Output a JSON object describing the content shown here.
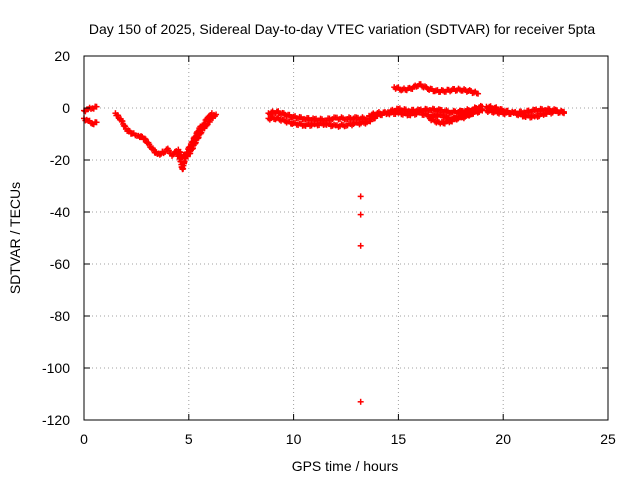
{
  "chart_data": {
    "type": "scatter",
    "title": "Day 150 of 2025, Sidereal Day-to-day VTEC variation (SDTVAR) for receiver 5pta",
    "xlabel": "GPS time / hours",
    "ylabel": "SDTVAR / TECUs",
    "xlim": [
      0,
      25
    ],
    "ylim": [
      -120,
      20
    ],
    "xticks": [
      0,
      5,
      10,
      15,
      20,
      25
    ],
    "yticks": [
      20,
      0,
      -20,
      -40,
      -60,
      -80,
      -100,
      -120
    ],
    "grid": true,
    "marker": "plus",
    "series": [
      {
        "name": "SDTVAR",
        "color": "#ff0000",
        "segments": [
          [
            [
              0.0,
              -4
            ],
            [
              0.2,
              -5
            ],
            [
              0.4,
              -6
            ],
            [
              0.6,
              -5.5
            ]
          ],
          [
            [
              0.0,
              -1
            ],
            [
              0.2,
              -0.5
            ],
            [
              0.4,
              0
            ],
            [
              0.6,
              0.5
            ]
          ],
          [
            [
              1.5,
              -2
            ],
            [
              1.8,
              -5
            ],
            [
              2.0,
              -8
            ],
            [
              2.3,
              -10
            ],
            [
              2.6,
              -10.5
            ],
            [
              2.9,
              -12
            ],
            [
              3.2,
              -15
            ],
            [
              3.5,
              -18
            ],
            [
              3.8,
              -17
            ],
            [
              4.0,
              -16
            ],
            [
              4.2,
              -18
            ],
            [
              4.4,
              -17
            ],
            [
              4.6,
              -20
            ],
            [
              4.7,
              -24
            ],
            [
              4.8,
              -20
            ],
            [
              5.0,
              -18
            ],
            [
              5.2,
              -15
            ],
            [
              5.4,
              -12
            ],
            [
              5.6,
              -9
            ],
            [
              5.8,
              -7
            ],
            [
              6.0,
              -5
            ],
            [
              6.2,
              -3
            ],
            [
              6.3,
              -2.5
            ]
          ],
          [
            [
              4.5,
              -16
            ],
            [
              4.7,
              -19
            ],
            [
              4.9,
              -17
            ],
            [
              5.1,
              -14
            ],
            [
              5.3,
              -11
            ],
            [
              5.5,
              -8
            ],
            [
              5.7,
              -6
            ],
            [
              5.9,
              -4
            ],
            [
              6.1,
              -2
            ]
          ],
          [
            [
              8.8,
              -2
            ],
            [
              9.2,
              -1.5
            ],
            [
              9.6,
              -2.5
            ],
            [
              10.0,
              -3.5
            ],
            [
              10.5,
              -4
            ],
            [
              11.0,
              -4.5
            ],
            [
              11.5,
              -4.5
            ],
            [
              12.0,
              -4
            ],
            [
              12.5,
              -4
            ],
            [
              13.0,
              -4
            ],
            [
              13.5,
              -4
            ]
          ],
          [
            [
              8.8,
              -4
            ],
            [
              9.2,
              -4
            ],
            [
              9.6,
              -5
            ],
            [
              10.0,
              -6
            ],
            [
              10.5,
              -6.5
            ],
            [
              11.0,
              -6.5
            ],
            [
              11.5,
              -6
            ],
            [
              12.0,
              -7
            ],
            [
              12.5,
              -6.5
            ],
            [
              13.0,
              -6
            ],
            [
              13.5,
              -5.5
            ]
          ],
          [
            [
              13.6,
              -5
            ],
            [
              14.0,
              -3
            ],
            [
              14.5,
              -1.5
            ],
            [
              15.0,
              -0.5
            ],
            [
              15.5,
              -1
            ],
            [
              16.0,
              -1
            ],
            [
              16.5,
              -0.5
            ],
            [
              17.0,
              -1
            ],
            [
              17.5,
              -1.5
            ],
            [
              18.0,
              -1.5
            ],
            [
              18.5,
              -0.5
            ],
            [
              19.0,
              0.5
            ]
          ],
          [
            [
              13.6,
              -3
            ],
            [
              14.0,
              -2
            ],
            [
              14.5,
              -2
            ],
            [
              15.0,
              -2
            ],
            [
              15.5,
              -2.5
            ],
            [
              16.0,
              -2
            ],
            [
              16.5,
              -3
            ],
            [
              17.0,
              -3
            ],
            [
              17.5,
              -4
            ],
            [
              18.0,
              -4
            ],
            [
              18.5,
              -2
            ],
            [
              19.0,
              -0.5
            ]
          ],
          [
            [
              14.8,
              8
            ],
            [
              15.2,
              7
            ],
            [
              15.6,
              7.5
            ],
            [
              16.0,
              9
            ],
            [
              16.4,
              7.5
            ],
            [
              16.8,
              6.5
            ],
            [
              17.2,
              6.5
            ],
            [
              17.6,
              7
            ],
            [
              18.0,
              7
            ],
            [
              18.4,
              6.5
            ],
            [
              18.8,
              5.5
            ]
          ],
          [
            [
              16.5,
              -4
            ],
            [
              17.0,
              -6
            ],
            [
              17.5,
              -5
            ],
            [
              18.0,
              -3
            ],
            [
              18.5,
              -2
            ],
            [
              19.0,
              -1
            ]
          ],
          [
            [
              19.2,
              0.5
            ],
            [
              19.6,
              0
            ],
            [
              20.0,
              -1
            ],
            [
              20.5,
              -2
            ],
            [
              21.0,
              -3
            ],
            [
              21.5,
              -3.5
            ],
            [
              22.0,
              -2
            ],
            [
              22.5,
              -1.5
            ],
            [
              22.9,
              -1.5
            ]
          ],
          [
            [
              19.2,
              -1
            ],
            [
              19.6,
              -1.5
            ],
            [
              20.0,
              -2
            ],
            [
              20.5,
              -2
            ],
            [
              21.0,
              -1.5
            ],
            [
              21.5,
              -1
            ],
            [
              22.0,
              -0.5
            ],
            [
              22.5,
              -1
            ],
            [
              22.9,
              -2
            ]
          ]
        ],
        "outliers": [
          [
            13.2,
            -34
          ],
          [
            13.2,
            -41
          ],
          [
            13.2,
            -53
          ],
          [
            13.2,
            -113
          ]
        ]
      }
    ]
  }
}
